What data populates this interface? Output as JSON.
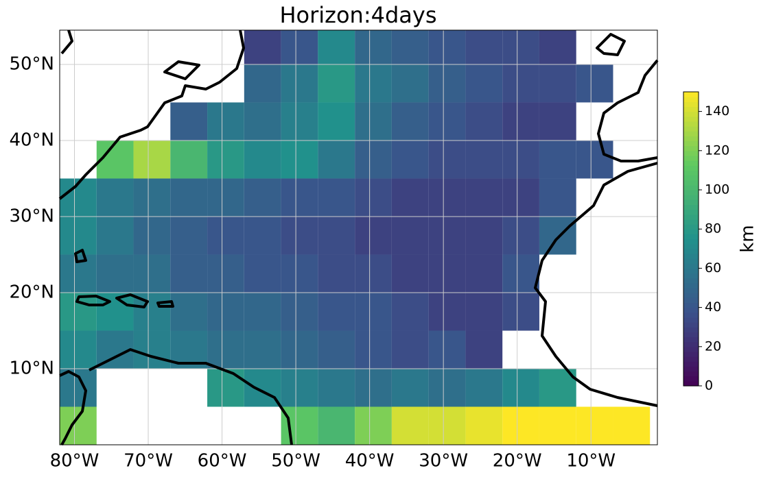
{
  "chart_data": {
    "type": "heatmap",
    "title": "Horizon:4days",
    "xlim": [
      -82,
      -1
    ],
    "ylim": [
      0,
      54.5
    ],
    "xticks": [
      {
        "value": -80,
        "label": "80°W"
      },
      {
        "value": -70,
        "label": "70°W"
      },
      {
        "value": -60,
        "label": "60°W"
      },
      {
        "value": -50,
        "label": "50°W"
      },
      {
        "value": -40,
        "label": "40°W"
      },
      {
        "value": -30,
        "label": "30°W"
      },
      {
        "value": -20,
        "label": "20°W"
      },
      {
        "value": -10,
        "label": "10°W"
      }
    ],
    "yticks": [
      {
        "value": 10,
        "label": "10°N"
      },
      {
        "value": 20,
        "label": "20°N"
      },
      {
        "value": 30,
        "label": "30°N"
      },
      {
        "value": 40,
        "label": "40°N"
      },
      {
        "value": 50,
        "label": "50°N"
      }
    ],
    "grid": true,
    "x": [
      -79.5,
      -74.5,
      -69.5,
      -64.5,
      -59.5,
      -54.5,
      -49.5,
      -44.5,
      -39.5,
      -34.5,
      -29.5,
      -24.5,
      -19.5,
      -14.5,
      -9.5,
      -4.5
    ],
    "y": [
      52.5,
      47.5,
      42.5,
      37.5,
      32.5,
      27.5,
      22.5,
      17.5,
      12.5,
      7.5,
      2.5
    ],
    "z": [
      [
        null,
        null,
        null,
        null,
        null,
        30,
        40,
        70,
        50,
        45,
        40,
        35,
        35,
        30,
        null,
        null
      ],
      [
        null,
        null,
        null,
        null,
        null,
        50,
        60,
        80,
        60,
        55,
        45,
        40,
        35,
        35,
        40,
        null
      ],
      [
        null,
        null,
        null,
        45,
        60,
        55,
        65,
        75,
        55,
        45,
        40,
        35,
        30,
        30,
        null,
        null
      ],
      [
        null,
        110,
        130,
        100,
        80,
        70,
        75,
        60,
        45,
        40,
        35,
        35,
        35,
        40,
        40,
        null
      ],
      [
        70,
        60,
        55,
        50,
        50,
        45,
        40,
        40,
        35,
        30,
        30,
        30,
        30,
        40,
        null,
        null
      ],
      [
        70,
        60,
        50,
        45,
        40,
        40,
        35,
        35,
        30,
        30,
        30,
        30,
        35,
        50,
        null,
        null
      ],
      [
        60,
        55,
        55,
        45,
        45,
        40,
        40,
        35,
        35,
        30,
        30,
        30,
        40,
        null,
        null,
        null
      ],
      [
        80,
        75,
        65,
        55,
        50,
        50,
        45,
        40,
        40,
        35,
        30,
        30,
        35,
        null,
        null,
        null
      ],
      [
        70,
        60,
        65,
        60,
        55,
        55,
        50,
        45,
        40,
        35,
        40,
        30,
        null,
        null,
        null,
        null
      ],
      [
        60,
        null,
        null,
        null,
        80,
        70,
        65,
        60,
        55,
        60,
        55,
        60,
        70,
        80,
        null,
        null
      ],
      [
        120,
        null,
        null,
        null,
        null,
        null,
        110,
        100,
        120,
        140,
        140,
        145,
        150,
        150,
        150,
        150
      ]
    ],
    "colormap": "viridis",
    "colorbar": {
      "label": "km",
      "lim": [
        0,
        150
      ],
      "ticks": [
        0,
        20,
        40,
        60,
        80,
        100,
        120,
        140
      ]
    }
  }
}
